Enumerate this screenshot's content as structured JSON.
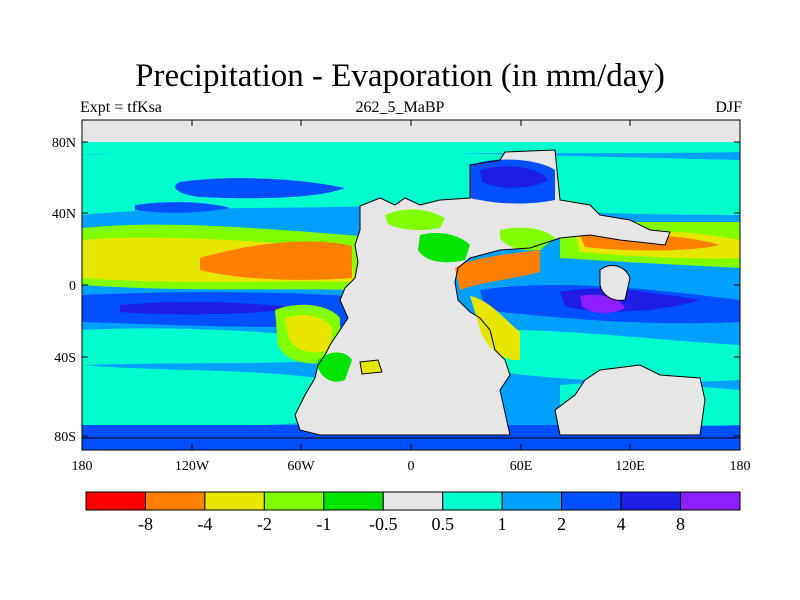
{
  "title": "Precipitation - Evaporation (in mm/day)",
  "subtitle_center": "262_5_MaBP",
  "subtitle_left": "Expt = tfKsa",
  "subtitle_right": "DJF",
  "lat_labels": [
    "80N",
    "40N",
    "0",
    "40S",
    "80S"
  ],
  "lon_labels": [
    "180",
    "120W",
    "60W",
    "0",
    "60E",
    "120E",
    "180"
  ],
  "colorbar": {
    "colors": [
      "#ff0000",
      "#ff7f00",
      "#e6e600",
      "#80ff00",
      "#00e600",
      "#e6e6e6",
      "#00ffcc",
      "#00a0ff",
      "#0050ff",
      "#1e1ee6",
      "#8c1eff"
    ],
    "labels": [
      "-8",
      "-4",
      "-2",
      "-1",
      "-0.5",
      "0.5",
      "1",
      "2",
      "4",
      "8"
    ]
  }
}
